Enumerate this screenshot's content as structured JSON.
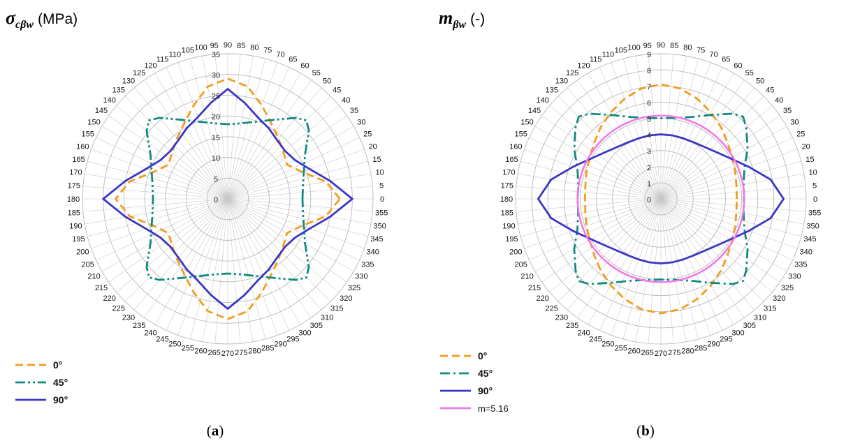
{
  "chart_data": [
    {
      "type": "polar-line",
      "title_symbol": "σ",
      "title_subscript": "cβw",
      "title_unit": "(MPa)",
      "caption_open": "(",
      "caption_letter": "a",
      "caption_close": ")",
      "r_range": [
        0,
        35
      ],
      "r_ticks": [
        "0",
        "5",
        "10",
        "15",
        "20",
        "25",
        "30",
        "35"
      ],
      "angle_ticks": [
        "0",
        "5",
        "10",
        "15",
        "20",
        "25",
        "30",
        "35",
        "40",
        "45",
        "50",
        "55",
        "60",
        "65",
        "70",
        "75",
        "80",
        "85",
        "90",
        "95",
        "100",
        "105",
        "110",
        "115",
        "120",
        "125",
        "130",
        "135",
        "140",
        "145",
        "150",
        "155",
        "160",
        "165",
        "170",
        "175",
        "180",
        "185",
        "190",
        "195",
        "200",
        "205",
        "210",
        "215",
        "220",
        "225",
        "230",
        "235",
        "240",
        "245",
        "250",
        "255",
        "260",
        "265",
        "270",
        "275",
        "280",
        "285",
        "290",
        "295",
        "300",
        "305",
        "310",
        "315",
        "320",
        "325",
        "330",
        "335",
        "340",
        "345",
        "350",
        "355"
      ],
      "grid": true,
      "legend_position": "bottom-left",
      "series": [
        {
          "name": "0°",
          "color": "#f39c1f",
          "style": "dashed",
          "points": [
            [
              0,
              27
            ],
            [
              10,
              24
            ],
            [
              20,
              19
            ],
            [
              30,
              16.5
            ],
            [
              40,
              17.5
            ],
            [
              50,
              19
            ],
            [
              60,
              21
            ],
            [
              70,
              24
            ],
            [
              80,
              27.5
            ],
            [
              90,
              29
            ],
            [
              100,
              27.5
            ],
            [
              110,
              24
            ],
            [
              120,
              21
            ],
            [
              130,
              19
            ],
            [
              140,
              17.5
            ],
            [
              150,
              16.5
            ],
            [
              160,
              19
            ],
            [
              170,
              24
            ],
            [
              180,
              27
            ],
            [
              190,
              24
            ],
            [
              200,
              19
            ],
            [
              210,
              16.5
            ],
            [
              220,
              17.5
            ],
            [
              230,
              19
            ],
            [
              240,
              21
            ],
            [
              250,
              24
            ],
            [
              260,
              27.5
            ],
            [
              270,
              29
            ],
            [
              280,
              27.5
            ],
            [
              290,
              24
            ],
            [
              300,
              21
            ],
            [
              310,
              19
            ],
            [
              320,
              17.5
            ],
            [
              330,
              16.5
            ],
            [
              340,
              19
            ],
            [
              350,
              24
            ]
          ]
        },
        {
          "name": "45°",
          "color": "#0f8a80",
          "style": "dash-dot-dot",
          "points": [
            [
              0,
              18
            ],
            [
              10,
              18.4
            ],
            [
              20,
              19.5
            ],
            [
              30,
              21.5
            ],
            [
              40,
              25.5
            ],
            [
              45,
              26.8
            ],
            [
              50,
              25.5
            ],
            [
              60,
              22
            ],
            [
              70,
              19.8
            ],
            [
              80,
              18.5
            ],
            [
              90,
              18
            ],
            [
              100,
              18.5
            ],
            [
              110,
              19.8
            ],
            [
              120,
              22
            ],
            [
              130,
              25.5
            ],
            [
              135,
              26.8
            ],
            [
              140,
              25.5
            ],
            [
              150,
              21.5
            ],
            [
              160,
              19.5
            ],
            [
              170,
              18.4
            ],
            [
              180,
              18
            ],
            [
              190,
              18.4
            ],
            [
              200,
              19.5
            ],
            [
              210,
              21.5
            ],
            [
              220,
              25.5
            ],
            [
              225,
              26.8
            ],
            [
              230,
              25.5
            ],
            [
              240,
              22
            ],
            [
              250,
              19.8
            ],
            [
              260,
              18.5
            ],
            [
              270,
              18
            ],
            [
              280,
              18.5
            ],
            [
              290,
              19.8
            ],
            [
              300,
              22
            ],
            [
              310,
              25.5
            ],
            [
              315,
              26.8
            ],
            [
              320,
              25.5
            ],
            [
              330,
              21.5
            ],
            [
              340,
              19.5
            ],
            [
              350,
              18.4
            ]
          ]
        },
        {
          "name": "90°",
          "color": "#3b36c4",
          "style": "solid",
          "points": [
            [
              0,
              30
            ],
            [
              10,
              25
            ],
            [
              20,
              21
            ],
            [
              30,
              18.7
            ],
            [
              40,
              18
            ],
            [
              50,
              18.5
            ],
            [
              60,
              19.7
            ],
            [
              70,
              21
            ],
            [
              80,
              23.5
            ],
            [
              90,
              26.5
            ],
            [
              100,
              23.5
            ],
            [
              110,
              21
            ],
            [
              120,
              19.7
            ],
            [
              130,
              18.5
            ],
            [
              140,
              18
            ],
            [
              150,
              18.7
            ],
            [
              160,
              21
            ],
            [
              170,
              25
            ],
            [
              180,
              30
            ],
            [
              190,
              25
            ],
            [
              200,
              21
            ],
            [
              210,
              18.7
            ],
            [
              220,
              18
            ],
            [
              230,
              18.5
            ],
            [
              240,
              19.7
            ],
            [
              250,
              21
            ],
            [
              260,
              23.5
            ],
            [
              270,
              26.5
            ],
            [
              280,
              23.5
            ],
            [
              290,
              21
            ],
            [
              300,
              19.7
            ],
            [
              310,
              18.5
            ],
            [
              320,
              18
            ],
            [
              330,
              18.7
            ],
            [
              340,
              21
            ],
            [
              350,
              25
            ]
          ]
        }
      ]
    },
    {
      "type": "polar-line",
      "title_symbol": "m",
      "title_subscript": "βw",
      "title_unit": "(-)",
      "caption_open": "(",
      "caption_letter": "b",
      "caption_close": ")",
      "r_range": [
        0,
        9
      ],
      "r_ticks": [
        "0",
        "1",
        "2",
        "3",
        "4",
        "5",
        "6",
        "7",
        "8",
        "9"
      ],
      "angle_ticks": [
        "0",
        "5",
        "10",
        "15",
        "20",
        "25",
        "30",
        "35",
        "40",
        "45",
        "50",
        "55",
        "60",
        "65",
        "70",
        "75",
        "80",
        "85",
        "90",
        "95",
        "100",
        "105",
        "110",
        "115",
        "120",
        "125",
        "130",
        "135",
        "140",
        "145",
        "150",
        "155",
        "160",
        "165",
        "170",
        "175",
        "180",
        "185",
        "190",
        "195",
        "200",
        "205",
        "210",
        "215",
        "220",
        "225",
        "230",
        "235",
        "240",
        "245",
        "250",
        "255",
        "260",
        "265",
        "270",
        "275",
        "280",
        "285",
        "290",
        "295",
        "300",
        "305",
        "310",
        "315",
        "320",
        "325",
        "330",
        "335",
        "340",
        "345",
        "350",
        "355"
      ],
      "grid": true,
      "legend_position": "bottom-left",
      "series": [
        {
          "name": "0°",
          "color": "#f39c1f",
          "style": "dashed",
          "points": [
            [
              0,
              4.7
            ],
            [
              10,
              4.75
            ],
            [
              20,
              4.9
            ],
            [
              30,
              5.1
            ],
            [
              40,
              5.4
            ],
            [
              50,
              5.8
            ],
            [
              60,
              6.2
            ],
            [
              70,
              6.6
            ],
            [
              80,
              6.95
            ],
            [
              90,
              7.1
            ],
            [
              100,
              6.95
            ],
            [
              110,
              6.6
            ],
            [
              120,
              6.2
            ],
            [
              130,
              5.8
            ],
            [
              140,
              5.4
            ],
            [
              150,
              5.1
            ],
            [
              160,
              4.9
            ],
            [
              170,
              4.75
            ],
            [
              180,
              4.7
            ],
            [
              190,
              4.75
            ],
            [
              200,
              4.9
            ],
            [
              210,
              5.1
            ],
            [
              220,
              5.4
            ],
            [
              230,
              5.8
            ],
            [
              240,
              6.2
            ],
            [
              250,
              6.6
            ],
            [
              260,
              6.95
            ],
            [
              270,
              7.1
            ],
            [
              280,
              6.95
            ],
            [
              290,
              6.6
            ],
            [
              300,
              6.2
            ],
            [
              310,
              5.8
            ],
            [
              320,
              5.4
            ],
            [
              330,
              5.1
            ],
            [
              340,
              4.9
            ],
            [
              350,
              4.75
            ]
          ]
        },
        {
          "name": "45°",
          "color": "#0f8a80",
          "style": "dash-dot",
          "points": [
            [
              0,
              5.15
            ],
            [
              10,
              5.2
            ],
            [
              20,
              5.5
            ],
            [
              30,
              6.2
            ],
            [
              40,
              6.9
            ],
            [
              45,
              7.2
            ],
            [
              50,
              6.9
            ],
            [
              60,
              6
            ],
            [
              70,
              5.4
            ],
            [
              80,
              5.1
            ],
            [
              90,
              5.0
            ],
            [
              100,
              5.1
            ],
            [
              110,
              5.4
            ],
            [
              120,
              6
            ],
            [
              130,
              6.9
            ],
            [
              135,
              7.2
            ],
            [
              140,
              6.9
            ],
            [
              150,
              6.2
            ],
            [
              160,
              5.5
            ],
            [
              170,
              5.2
            ],
            [
              180,
              5.15
            ],
            [
              190,
              5.2
            ],
            [
              200,
              5.5
            ],
            [
              210,
              6.2
            ],
            [
              220,
              6.9
            ],
            [
              225,
              7.2
            ],
            [
              230,
              6.9
            ],
            [
              240,
              6
            ],
            [
              250,
              5.4
            ],
            [
              260,
              5.1
            ],
            [
              270,
              5.0
            ],
            [
              280,
              5.1
            ],
            [
              290,
              5.4
            ],
            [
              300,
              6
            ],
            [
              310,
              6.9
            ],
            [
              315,
              7.2
            ],
            [
              320,
              6.9
            ],
            [
              330,
              6.2
            ],
            [
              340,
              5.5
            ],
            [
              350,
              5.2
            ]
          ]
        },
        {
          "name": "90°",
          "color": "#3b36c4",
          "style": "solid",
          "points": [
            [
              0,
              7.6
            ],
            [
              10,
              6.9
            ],
            [
              20,
              5.8
            ],
            [
              30,
              5.0
            ],
            [
              40,
              4.5
            ],
            [
              50,
              4.2
            ],
            [
              60,
              4.05
            ],
            [
              70,
              4.0
            ],
            [
              80,
              4.0
            ],
            [
              90,
              4.0
            ],
            [
              100,
              4.0
            ],
            [
              110,
              4.0
            ],
            [
              120,
              4.05
            ],
            [
              130,
              4.2
            ],
            [
              140,
              4.5
            ],
            [
              150,
              5.0
            ],
            [
              160,
              5.8
            ],
            [
              170,
              6.9
            ],
            [
              180,
              7.6
            ],
            [
              190,
              6.9
            ],
            [
              200,
              5.8
            ],
            [
              210,
              5.0
            ],
            [
              220,
              4.5
            ],
            [
              230,
              4.2
            ],
            [
              240,
              4.05
            ],
            [
              250,
              4.0
            ],
            [
              260,
              4.0
            ],
            [
              270,
              4.0
            ],
            [
              280,
              4.0
            ],
            [
              290,
              4.0
            ],
            [
              300,
              4.05
            ],
            [
              310,
              4.2
            ],
            [
              320,
              4.5
            ],
            [
              330,
              5.0
            ],
            [
              340,
              5.8
            ],
            [
              350,
              6.9
            ]
          ]
        },
        {
          "name": "m=5.16",
          "color": "#f27ae8",
          "style": "solid",
          "constant": 5.16
        }
      ]
    }
  ]
}
